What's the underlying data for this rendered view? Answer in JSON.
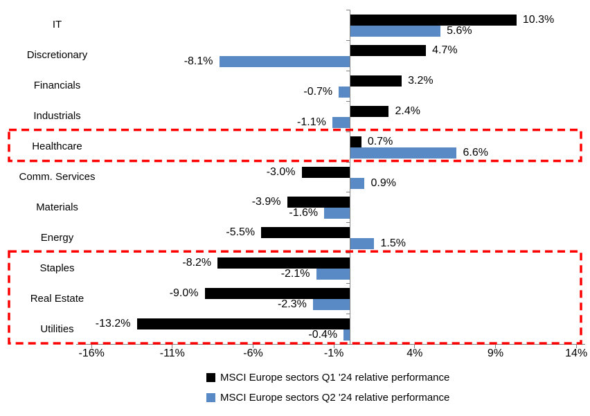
{
  "chart_data": {
    "type": "bar",
    "orientation": "horizontal",
    "title": "",
    "categories": [
      "IT",
      "Discretionary",
      "Financials",
      "Industrials",
      "Healthcare",
      "Comm. Services",
      "Materials",
      "Energy",
      "Staples",
      "Real Estate",
      "Utilities"
    ],
    "series": [
      {
        "name": "MSCI Europe sectors Q1 '24 relative performance",
        "color": "#000000",
        "values": [
          10.3,
          4.7,
          3.2,
          2.4,
          0.7,
          -3.0,
          -3.9,
          -5.5,
          -8.2,
          -9.0,
          -13.2
        ]
      },
      {
        "name": "MSCI Europe sectors Q2 '24 relative performance",
        "color": "#5A8AC6",
        "values": [
          5.6,
          -8.1,
          -0.7,
          -1.1,
          6.6,
          0.9,
          -1.6,
          1.5,
          -2.1,
          -2.3,
          -0.4
        ]
      }
    ],
    "data_labels": {
      "visible": true,
      "format": "one-decimal-percent",
      "position": "outside-end"
    },
    "x_ticks": [
      {
        "value": -16,
        "label": "-16%"
      },
      {
        "value": -11,
        "label": "-11%"
      },
      {
        "value": -6,
        "label": "-6%"
      },
      {
        "value": -1,
        "label": "-1%"
      },
      {
        "value": 4,
        "label": "4%"
      },
      {
        "value": 9,
        "label": "9%"
      },
      {
        "value": 14,
        "label": "14%"
      }
    ],
    "xlim": [
      -17,
      14.6
    ],
    "grid": false,
    "axis_color": "#808080",
    "legend_position": "bottom",
    "highlights": [
      {
        "from": "Healthcare",
        "to": "Healthcare",
        "style": "red-dashed-box"
      },
      {
        "from": "Staples",
        "to": "Utilities",
        "style": "red-dashed-box"
      }
    ],
    "highlight_color": "#FF0000"
  },
  "legend": {
    "items": [
      {
        "label": "MSCI Europe sectors Q1 '24 relative performance",
        "color": "#000000"
      },
      {
        "label": "MSCI Europe sectors Q2 '24 relative performance",
        "color": "#5A8AC6"
      }
    ]
  }
}
